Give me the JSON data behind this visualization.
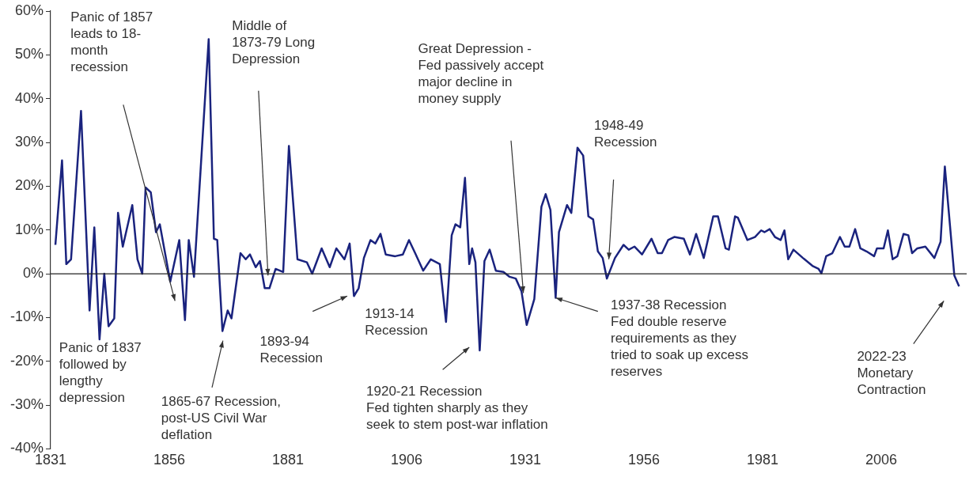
{
  "chart_data": {
    "type": "line",
    "x": [
      1832,
      1833.4,
      1834.3,
      1835.3,
      1837.4,
      1839.2,
      1840.2,
      1841.3,
      1842.3,
      1843.2,
      1844.4,
      1845.2,
      1846.2,
      1848.2,
      1849.3,
      1850.3,
      1851,
      1852.1,
      1853.2,
      1854,
      1856.2,
      1858.1,
      1859.3,
      1860.1,
      1861.2,
      1864.3,
      1865.4,
      1866.1,
      1867.2,
      1868.3,
      1869.1,
      1871,
      1872.1,
      1873,
      1874.2,
      1875.1,
      1876.1,
      1877.1,
      1878.4,
      1880,
      1881.2,
      1883,
      1885,
      1886.1,
      1888.1,
      1889.8,
      1891.2,
      1892.9,
      1894,
      1894.9,
      1895.9,
      1897,
      1898.4,
      1899.4,
      1900.5,
      1901.6,
      1903.6,
      1905.2,
      1906.5,
      1907.8,
      1909.5,
      1911.1,
      1913,
      1914.3,
      1915.5,
      1916.3,
      1917.3,
      1918.3,
      1919.2,
      1919.8,
      1920.5,
      1921.4,
      1922.4,
      1923.5,
      1924.8,
      1926.4,
      1927.7,
      1929,
      1930.2,
      1931.3,
      1932.9,
      1934.4,
      1935.3,
      1936.3,
      1937.4,
      1938.1,
      1939.8,
      1940.7,
      1942,
      1943.2,
      1944.3,
      1945.3,
      1946.3,
      1947.3,
      1948.2,
      1949.9,
      1951.7,
      1952.8,
      1954,
      1955.6,
      1957.6,
      1958.9,
      1959.8,
      1961.1,
      1962.4,
      1964.4,
      1965.7,
      1967,
      1968.6,
      1970.6,
      1971.6,
      1973.2,
      1973.9,
      1975.2,
      1975.8,
      1977.8,
      1979.4,
      1980.7,
      1981.4,
      1982.5,
      1983.6,
      1984.8,
      1985.6,
      1986.4,
      1987.5,
      1989.5,
      1991.5,
      1992.8,
      1993.4,
      1994.4,
      1995.7,
      1997.3,
      1998.3,
      1999.3,
      2000.5,
      2001.6,
      2002.9,
      2004.5,
      2005.1,
      2006.5,
      2007.4,
      2008.4,
      2009.4,
      2010.7,
      2011.7,
      2012.5,
      2013.6,
      2015.3,
      2017.2,
      2018.5,
      2019.4,
      2021.4,
      2022.4
    ],
    "series": [
      {
        "color": "#1a237e",
        "values": [
          6.6,
          25.9,
          2.2,
          3.3,
          37.2,
          -8.4,
          10.6,
          -15,
          0,
          -12,
          -10.2,
          13.9,
          6.2,
          15.7,
          3.3,
          0,
          19.7,
          18.6,
          9.5,
          11.3,
          -1.8,
          7.7,
          -10.6,
          7.7,
          -0.7,
          53.6,
          8,
          7.7,
          -13.1,
          -8.4,
          -10.2,
          4.7,
          3.3,
          4.4,
          1.5,
          2.9,
          -3.3,
          -3.3,
          1.1,
          0.4,
          29.2,
          3.3,
          2.6,
          0,
          5.8,
          1.5,
          5.8,
          3.3,
          6.9,
          -5.1,
          -3.3,
          3.6,
          7.7,
          6.9,
          9.1,
          4.4,
          4,
          4.4,
          7.7,
          4.7,
          0.7,
          3.3,
          2.2,
          -11,
          8.8,
          11.3,
          10.6,
          21.9,
          2.2,
          5.8,
          2.6,
          -17.5,
          2.9,
          5.5,
          0.7,
          0.4,
          -0.7,
          -1.1,
          -4,
          -11.7,
          -5.8,
          15.3,
          18.2,
          14.6,
          -5.5,
          9.5,
          15.7,
          13.9,
          28.8,
          27,
          13.1,
          12.4,
          5.1,
          3.6,
          -1.1,
          3.6,
          6.6,
          5.5,
          6.2,
          4.4,
          8,
          4.7,
          4.7,
          7.7,
          8.4,
          8,
          4.4,
          9.1,
          3.6,
          13.1,
          13.1,
          5.8,
          5.5,
          13.1,
          12.8,
          7.7,
          8.4,
          9.9,
          9.5,
          10.2,
          8.4,
          7.7,
          9.9,
          3.3,
          5.5,
          3.6,
          1.8,
          1.1,
          0.1,
          4,
          4.7,
          8.4,
          6.2,
          6.2,
          10.2,
          5.8,
          5.1,
          4,
          5.8,
          5.8,
          9.9,
          3.3,
          4,
          9.1,
          8.8,
          4.7,
          5.8,
          6.2,
          3.6,
          7.3,
          24.5,
          -0.4,
          -2.9
        ]
      }
    ],
    "xlim": [
      1831,
      2024
    ],
    "xticks": [
      1831,
      1856,
      1881,
      1906,
      1931,
      1956,
      1981,
      2006
    ],
    "ylim": [
      -40,
      60
    ],
    "yticks": [
      {
        "value": -40,
        "label": "-40%"
      },
      {
        "value": -30,
        "label": "-30%"
      },
      {
        "value": -20,
        "label": "-20%"
      },
      {
        "value": -10,
        "label": "-10%"
      },
      {
        "value": 0,
        "label": "0%"
      },
      {
        "value": 10,
        "label": "10%"
      },
      {
        "value": 20,
        "label": "20%"
      },
      {
        "value": 30,
        "label": "30%"
      },
      {
        "value": 40,
        "label": "40%"
      },
      {
        "value": 50,
        "label": "50%"
      },
      {
        "value": 60,
        "label": "60%"
      }
    ],
    "ref_lines": [
      {
        "axis": "y",
        "value": 0,
        "color": "#222222"
      }
    ],
    "grid": false,
    "legend": false,
    "marker": "none",
    "line_style": "solid",
    "annotations": [
      "Panic of 1857 leads to 18-month recession",
      "Middle of 1873-79 Long Depression",
      "Panic of 1837 followed by lengthy depression",
      "1865-67 Recession, post-US Civil War deflation",
      "1893-94 Recession",
      "1913-14 Recession",
      "1920-21 Recession Fed tighten sharply as they seek to stem post-war inflation",
      "Great Depression - Fed passively accept major decline in money supply",
      "1948-49 Recession",
      {
        "text": "1937-38 Recession Fed double reserve requirements as they tried to soak up excess reserves",
        "x": 1937.4,
        "y": -5.5
      },
      "2022-23 Monetary Contraction"
    ]
  }
}
